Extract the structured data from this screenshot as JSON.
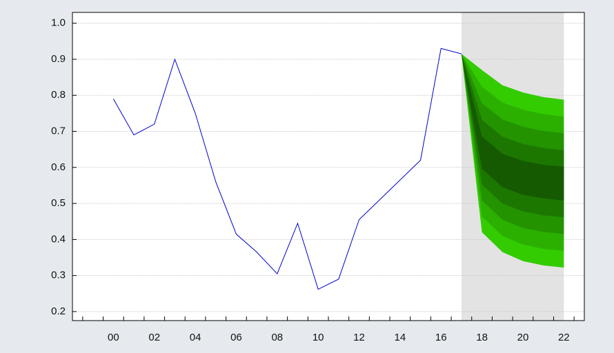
{
  "chart_data": {
    "type": "line",
    "x": [
      2000,
      2001,
      2002,
      2003,
      2004,
      2005,
      2006,
      2007,
      2008,
      2009,
      2010,
      2011,
      2012,
      2013,
      2014,
      2015,
      2016,
      2017
    ],
    "series": [
      {
        "color": "#0000cc",
        "values": [
          0.79,
          0.69,
          0.72,
          0.9,
          0.75,
          0.56,
          0.415,
          0.365,
          0.305,
          0.445,
          0.262,
          0.29,
          0.455,
          0.51,
          0.565,
          0.62,
          0.93,
          0.915
        ]
      }
    ],
    "fan": {
      "x": [
        2017,
        2018,
        2019,
        2020,
        2021,
        2022
      ],
      "bands": [
        {
          "color": "#33cc00",
          "upper": [
            0.915,
            0.87,
            0.828,
            0.808,
            0.795,
            0.788
          ],
          "lower": [
            0.915,
            0.42,
            0.365,
            0.34,
            0.328,
            0.322
          ]
        },
        {
          "color": "#2bb000",
          "upper": [
            0.915,
            0.824,
            0.78,
            0.76,
            0.748,
            0.741
          ],
          "lower": [
            0.915,
            0.464,
            0.41,
            0.386,
            0.374,
            0.369
          ]
        },
        {
          "color": "#239300",
          "upper": [
            0.915,
            0.778,
            0.733,
            0.713,
            0.701,
            0.695
          ],
          "lower": [
            0.915,
            0.508,
            0.455,
            0.432,
            0.421,
            0.415
          ]
        },
        {
          "color": "#1c7700",
          "upper": [
            0.915,
            0.732,
            0.685,
            0.665,
            0.654,
            0.648
          ],
          "lower": [
            0.915,
            0.552,
            0.5,
            0.478,
            0.467,
            0.462
          ]
        },
        {
          "color": "#155a00",
          "upper": [
            0.915,
            0.686,
            0.638,
            0.618,
            0.607,
            0.602
          ],
          "lower": [
            0.915,
            0.596,
            0.545,
            0.524,
            0.514,
            0.508
          ]
        }
      ]
    },
    "shaded_range": [
      2017,
      2022
    ],
    "shade_color": "#e3e3e3",
    "xlim": [
      1998,
      2023
    ],
    "ylim": [
      0.175,
      1.03
    ],
    "xticks": [
      {
        "value": 2000,
        "label": "00"
      },
      {
        "value": 2002,
        "label": "02"
      },
      {
        "value": 2004,
        "label": "04"
      },
      {
        "value": 2006,
        "label": "06"
      },
      {
        "value": 2008,
        "label": "08"
      },
      {
        "value": 2010,
        "label": "10"
      },
      {
        "value": 2012,
        "label": "12"
      },
      {
        "value": 2014,
        "label": "14"
      },
      {
        "value": 2016,
        "label": "16"
      },
      {
        "value": 2018,
        "label": "18"
      },
      {
        "value": 2020,
        "label": "20"
      },
      {
        "value": 2022,
        "label": "22"
      }
    ],
    "xminor_ticks": [
      1998.5,
      1999.5,
      2000.5,
      2001.5,
      2002.5,
      2003.5,
      2004.5,
      2005.5,
      2006.5,
      2007.5,
      2008.5,
      2009.5,
      2010.5,
      2011.5,
      2012.5,
      2013.5,
      2014.5,
      2015.5,
      2016.5,
      2017.5,
      2018.5,
      2019.5,
      2020.5,
      2021.5,
      2022.5
    ],
    "yticks": [
      0.2,
      0.3,
      0.4,
      0.5,
      0.6,
      0.7,
      0.8,
      0.9,
      {
        "value": 1,
        "label": "1.0"
      }
    ],
    "grid": true
  }
}
